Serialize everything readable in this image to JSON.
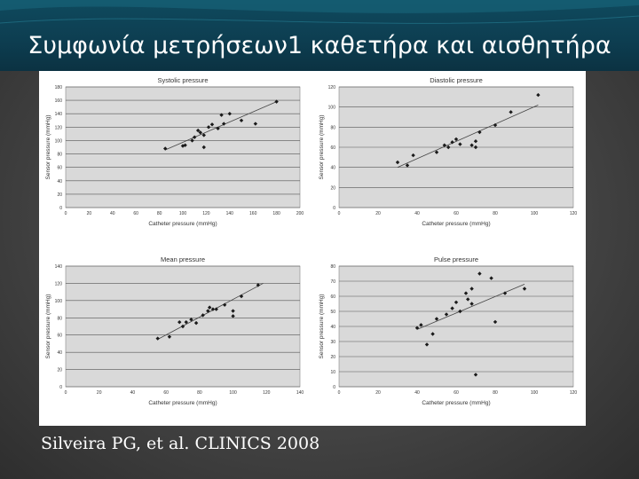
{
  "slide": {
    "title": "Συμφωνία μετρήσεων1 καθετήρα και αισθητήρα",
    "caption": "Silveira PG, et al. CLINICS 2008"
  },
  "chart_data": [
    {
      "type": "scatter",
      "title": "Systolic pressure",
      "xlabel": "Catheter pressure (mmHg)",
      "ylabel": "Sensor pressure (mmHg)",
      "xlim": [
        0,
        200
      ],
      "ylim": [
        0,
        180
      ],
      "xticks": [
        0,
        20,
        40,
        60,
        80,
        100,
        120,
        140,
        160,
        180,
        200
      ],
      "yticks": [
        0,
        20,
        40,
        60,
        80,
        100,
        120,
        140,
        160,
        180
      ],
      "x": [
        85,
        100,
        102,
        108,
        110,
        113,
        115,
        118,
        118,
        122,
        125,
        130,
        133,
        135,
        140,
        150,
        162,
        180
      ],
      "y": [
        88,
        92,
        93,
        100,
        105,
        115,
        112,
        108,
        90,
        120,
        124,
        118,
        138,
        125,
        140,
        130,
        125,
        158
      ],
      "trendline": {
        "x": [
          85,
          180
        ],
        "y": [
          86,
          158
        ]
      },
      "grid": "horizontal"
    },
    {
      "type": "scatter",
      "title": "Diastolic pressure",
      "xlabel": "Catheter pressure (mmHg)",
      "ylabel": "Sensor pressure (mmHg)",
      "xlim": [
        0,
        120
      ],
      "ylim": [
        0,
        120
      ],
      "xticks": [
        0,
        20,
        40,
        60,
        80,
        100,
        120
      ],
      "yticks": [
        0,
        20,
        40,
        60,
        80,
        100,
        120
      ],
      "x": [
        30,
        35,
        38,
        50,
        54,
        56,
        58,
        60,
        62,
        68,
        70,
        70,
        72,
        80,
        88,
        102
      ],
      "y": [
        45,
        42,
        52,
        55,
        62,
        60,
        65,
        68,
        63,
        62,
        60,
        66,
        75,
        82,
        95,
        112
      ],
      "trendline": {
        "x": [
          30,
          102
        ],
        "y": [
          40,
          102
        ]
      },
      "grid": "horizontal"
    },
    {
      "type": "scatter",
      "title": "Mean pressure",
      "xlabel": "Catheter pressure (mmHg)",
      "ylabel": "Sensor pressure (mmHg)",
      "xlim": [
        0,
        140
      ],
      "ylim": [
        0,
        140
      ],
      "xticks": [
        0,
        20,
        40,
        60,
        80,
        100,
        120,
        140
      ],
      "yticks": [
        0,
        20,
        40,
        60,
        80,
        100,
        120,
        140
      ],
      "x": [
        55,
        62,
        68,
        70,
        72,
        75,
        78,
        82,
        85,
        86,
        88,
        90,
        95,
        100,
        100,
        105,
        115
      ],
      "y": [
        56,
        58,
        75,
        70,
        75,
        78,
        74,
        83,
        88,
        92,
        90,
        90,
        95,
        88,
        82,
        105,
        118
      ],
      "trendline": {
        "x": [
          55,
          118
        ],
        "y": [
          55,
          120
        ]
      },
      "grid": "horizontal"
    },
    {
      "type": "scatter",
      "title": "Pulse pressure",
      "xlabel": "Catheter pressure (mmHg)",
      "ylabel": "Sensor pressure (mmHg)",
      "xlim": [
        0,
        120
      ],
      "ylim": [
        0,
        80
      ],
      "xticks": [
        0,
        20,
        40,
        60,
        80,
        100,
        120
      ],
      "yticks": [
        0,
        10,
        20,
        30,
        40,
        50,
        60,
        70,
        80
      ],
      "x": [
        40,
        42,
        45,
        48,
        50,
        55,
        58,
        60,
        62,
        65,
        66,
        68,
        68,
        70,
        72,
        78,
        80,
        85,
        95
      ],
      "y": [
        39,
        41,
        28,
        35,
        45,
        48,
        52,
        56,
        50,
        62,
        58,
        55,
        65,
        8,
        75,
        72,
        43,
        62,
        65
      ],
      "trendline": {
        "x": [
          40,
          95
        ],
        "y": [
          38,
          68
        ]
      },
      "grid": "horizontal"
    }
  ]
}
